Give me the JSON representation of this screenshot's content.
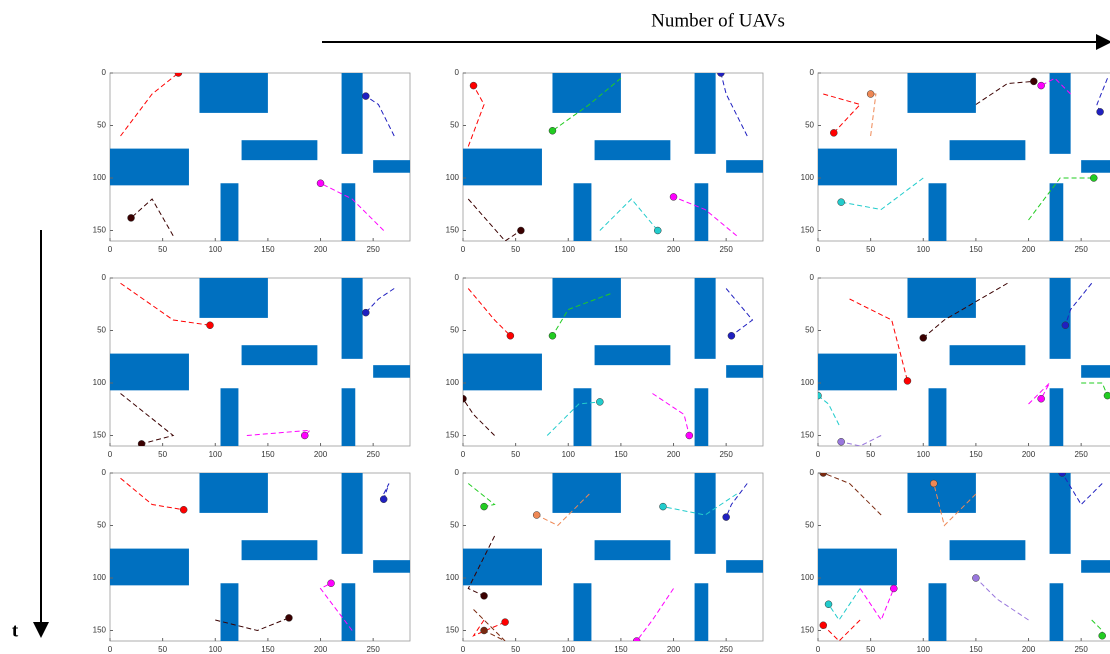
{
  "x_axis_title": "Number of UAVs",
  "y_axis_title": "t",
  "obstacles": [
    [
      85,
      0,
      65,
      38
    ],
    [
      0,
      72,
      75,
      35
    ],
    [
      125,
      64,
      72,
      19
    ],
    [
      220,
      0,
      20,
      77
    ],
    [
      250,
      83,
      35,
      12
    ],
    [
      105,
      105,
      17,
      55
    ],
    [
      220,
      105,
      13,
      55
    ]
  ],
  "chart_data": [
    {
      "type": "scatter",
      "xlim": [
        0,
        285
      ],
      "ylim": [
        0,
        160
      ],
      "xticks": [
        0,
        50,
        100,
        150,
        200,
        250
      ],
      "yticks": [
        0,
        50,
        100,
        150
      ],
      "series": [
        {
          "color": "#ff0000",
          "x": [
            10,
            40,
            65
          ],
          "y": [
            60,
            20,
            0
          ]
        },
        {
          "color": "#2020c0",
          "x": [
            270,
            255,
            243
          ],
          "y": [
            60,
            30,
            22
          ]
        },
        {
          "color": "#3a0000",
          "x": [
            60,
            40,
            20
          ],
          "y": [
            155,
            120,
            138
          ]
        },
        {
          "color": "#ff00ff",
          "x": [
            260,
            230,
            200
          ],
          "y": [
            150,
            120,
            105
          ]
        }
      ]
    },
    {
      "type": "scatter",
      "xlim": [
        0,
        285
      ],
      "ylim": [
        0,
        160
      ],
      "xticks": [
        0,
        50,
        100,
        150,
        200,
        250
      ],
      "yticks": [
        0,
        50,
        100,
        150
      ],
      "series": [
        {
          "color": "#ff0000",
          "x": [
            5,
            20,
            10
          ],
          "y": [
            70,
            30,
            12
          ]
        },
        {
          "color": "#3a0000",
          "x": [
            5,
            40,
            55
          ],
          "y": [
            120,
            160,
            150
          ]
        },
        {
          "color": "#22cc22",
          "x": [
            150,
            120,
            85
          ],
          "y": [
            5,
            30,
            55
          ]
        },
        {
          "color": "#2020c0",
          "x": [
            270,
            250,
            245
          ],
          "y": [
            60,
            20,
            0
          ]
        },
        {
          "color": "#ff00ff",
          "x": [
            260,
            230,
            200
          ],
          "y": [
            155,
            130,
            118
          ]
        },
        {
          "color": "#22cccc",
          "x": [
            130,
            160,
            185
          ],
          "y": [
            150,
            120,
            150
          ]
        }
      ]
    },
    {
      "type": "scatter",
      "xlim": [
        0,
        285
      ],
      "ylim": [
        0,
        160
      ],
      "xticks": [
        0,
        50,
        100,
        150,
        200,
        250
      ],
      "yticks": [
        0,
        50,
        100,
        150
      ],
      "series": [
        {
          "color": "#ff0000",
          "x": [
            5,
            40,
            15
          ],
          "y": [
            20,
            30,
            57
          ]
        },
        {
          "color": "#3a0000",
          "x": [
            150,
            180,
            205
          ],
          "y": [
            30,
            10,
            8
          ]
        },
        {
          "color": "#ff00ff",
          "x": [
            240,
            225,
            212
          ],
          "y": [
            20,
            5,
            12
          ]
        },
        {
          "color": "#2020c0",
          "x": [
            275,
            265,
            268
          ],
          "y": [
            5,
            30,
            37
          ]
        },
        {
          "color": "#22cc22",
          "x": [
            200,
            230,
            262
          ],
          "y": [
            140,
            100,
            100
          ]
        },
        {
          "color": "#22cccc",
          "x": [
            100,
            60,
            22
          ],
          "y": [
            100,
            130,
            123
          ]
        },
        {
          "color": "#ee8855",
          "x": [
            50,
            55,
            50
          ],
          "y": [
            60,
            20,
            20
          ]
        }
      ]
    },
    {
      "type": "scatter",
      "xlim": [
        0,
        285
      ],
      "ylim": [
        0,
        160
      ],
      "xticks": [
        0,
        50,
        100,
        150,
        200,
        250
      ],
      "yticks": [
        0,
        50,
        100,
        150
      ],
      "series": [
        {
          "color": "#ff0000",
          "x": [
            10,
            60,
            95
          ],
          "y": [
            5,
            40,
            45
          ]
        },
        {
          "color": "#2020c0",
          "x": [
            270,
            255,
            243
          ],
          "y": [
            10,
            20,
            33
          ]
        },
        {
          "color": "#3a0000",
          "x": [
            10,
            60,
            30
          ],
          "y": [
            110,
            150,
            158
          ]
        },
        {
          "color": "#ff00ff",
          "x": [
            130,
            190,
            185
          ],
          "y": [
            150,
            145,
            150
          ]
        }
      ]
    },
    {
      "type": "scatter",
      "xlim": [
        0,
        285
      ],
      "ylim": [
        0,
        160
      ],
      "xticks": [
        0,
        50,
        100,
        150,
        200,
        250
      ],
      "yticks": [
        0,
        50,
        100,
        150
      ],
      "series": [
        {
          "color": "#ff0000",
          "x": [
            5,
            30,
            45
          ],
          "y": [
            10,
            40,
            55
          ]
        },
        {
          "color": "#22cc22",
          "x": [
            140,
            100,
            85
          ],
          "y": [
            15,
            30,
            55
          ]
        },
        {
          "color": "#3a0000",
          "x": [
            30,
            10,
            0
          ],
          "y": [
            150,
            130,
            115
          ]
        },
        {
          "color": "#22cccc",
          "x": [
            80,
            110,
            130
          ],
          "y": [
            150,
            120,
            118
          ]
        },
        {
          "color": "#ff00ff",
          "x": [
            180,
            210,
            215
          ],
          "y": [
            110,
            130,
            150
          ]
        },
        {
          "color": "#2020c0",
          "x": [
            250,
            275,
            255
          ],
          "y": [
            10,
            40,
            55
          ]
        }
      ]
    },
    {
      "type": "scatter",
      "xlim": [
        0,
        285
      ],
      "ylim": [
        0,
        160
      ],
      "xticks": [
        0,
        50,
        100,
        150,
        200,
        250
      ],
      "yticks": [
        0,
        50,
        100,
        150
      ],
      "series": [
        {
          "color": "#ff0000",
          "x": [
            30,
            70,
            85
          ],
          "y": [
            20,
            40,
            98
          ]
        },
        {
          "color": "#3a0000",
          "x": [
            180,
            120,
            100
          ],
          "y": [
            5,
            40,
            57
          ]
        },
        {
          "color": "#2020c0",
          "x": [
            260,
            240,
            235
          ],
          "y": [
            5,
            30,
            45
          ]
        },
        {
          "color": "#ff00ff",
          "x": [
            200,
            220,
            212
          ],
          "y": [
            120,
            100,
            115
          ]
        },
        {
          "color": "#22cc22",
          "x": [
            250,
            270,
            275
          ],
          "y": [
            100,
            100,
            112
          ]
        },
        {
          "color": "#22cccc",
          "x": [
            20,
            10,
            0
          ],
          "y": [
            140,
            120,
            112
          ]
        },
        {
          "color": "#9977dd",
          "x": [
            60,
            40,
            22
          ],
          "y": [
            150,
            160,
            156
          ]
        }
      ]
    },
    {
      "type": "scatter",
      "xlim": [
        0,
        285
      ],
      "ylim": [
        0,
        160
      ],
      "xticks": [
        0,
        50,
        100,
        150,
        200,
        250
      ],
      "yticks": [
        0,
        50,
        100,
        150
      ],
      "series": [
        {
          "color": "#ff0000",
          "x": [
            10,
            40,
            70
          ],
          "y": [
            5,
            30,
            35
          ]
        },
        {
          "color": "#2020c0",
          "x": [
            260,
            265,
            260
          ],
          "y": [
            20,
            10,
            25
          ]
        },
        {
          "color": "#3a0000",
          "x": [
            100,
            140,
            170
          ],
          "y": [
            140,
            150,
            138
          ]
        },
        {
          "color": "#ff00ff",
          "x": [
            230,
            200,
            210
          ],
          "y": [
            150,
            110,
            105
          ]
        }
      ]
    },
    {
      "type": "scatter",
      "xlim": [
        0,
        285
      ],
      "ylim": [
        0,
        160
      ],
      "xticks": [
        0,
        50,
        100,
        150,
        200,
        250
      ],
      "yticks": [
        0,
        50,
        100,
        150
      ],
      "series": [
        {
          "color": "#ff0000",
          "x": [
            20,
            10,
            40
          ],
          "y": [
            140,
            155,
            142
          ]
        },
        {
          "color": "#22cc22",
          "x": [
            5,
            30,
            20
          ],
          "y": [
            10,
            30,
            32
          ]
        },
        {
          "color": "#3a0000",
          "x": [
            30,
            5,
            20
          ],
          "y": [
            60,
            110,
            117
          ]
        },
        {
          "color": "#22cccc",
          "x": [
            260,
            230,
            190
          ],
          "y": [
            20,
            40,
            32
          ]
        },
        {
          "color": "#2020c0",
          "x": [
            270,
            255,
            250
          ],
          "y": [
            10,
            30,
            42
          ]
        },
        {
          "color": "#ff00ff",
          "x": [
            200,
            180,
            165
          ],
          "y": [
            110,
            140,
            160
          ]
        },
        {
          "color": "#ee8855",
          "x": [
            120,
            90,
            70
          ],
          "y": [
            20,
            50,
            40
          ]
        },
        {
          "color": "#7a2a10",
          "x": [
            10,
            40,
            20
          ],
          "y": [
            130,
            160,
            150
          ]
        }
      ]
    },
    {
      "type": "scatter",
      "xlim": [
        0,
        285
      ],
      "ylim": [
        0,
        160
      ],
      "xticks": [
        0,
        50,
        100,
        150,
        200,
        250
      ],
      "yticks": [
        0,
        50,
        100,
        150
      ],
      "series": [
        {
          "color": "#7a2a10",
          "x": [
            60,
            30,
            5
          ],
          "y": [
            40,
            10,
            0
          ]
        },
        {
          "color": "#2020c0",
          "x": [
            270,
            250,
            232
          ],
          "y": [
            10,
            30,
            0
          ]
        },
        {
          "color": "#22cccc",
          "x": [
            40,
            20,
            10
          ],
          "y": [
            110,
            140,
            125
          ]
        },
        {
          "color": "#ff0000",
          "x": [
            40,
            20,
            5
          ],
          "y": [
            140,
            160,
            145
          ]
        },
        {
          "color": "#ff00ff",
          "x": [
            40,
            60,
            72
          ],
          "y": [
            110,
            140,
            110
          ]
        },
        {
          "color": "#22cc22",
          "x": [
            260,
            270,
            270
          ],
          "y": [
            140,
            150,
            155
          ]
        },
        {
          "color": "#ee8855",
          "x": [
            150,
            120,
            110
          ],
          "y": [
            20,
            50,
            10
          ]
        },
        {
          "color": "#9977dd",
          "x": [
            200,
            170,
            150
          ],
          "y": [
            140,
            120,
            100
          ]
        }
      ]
    }
  ]
}
